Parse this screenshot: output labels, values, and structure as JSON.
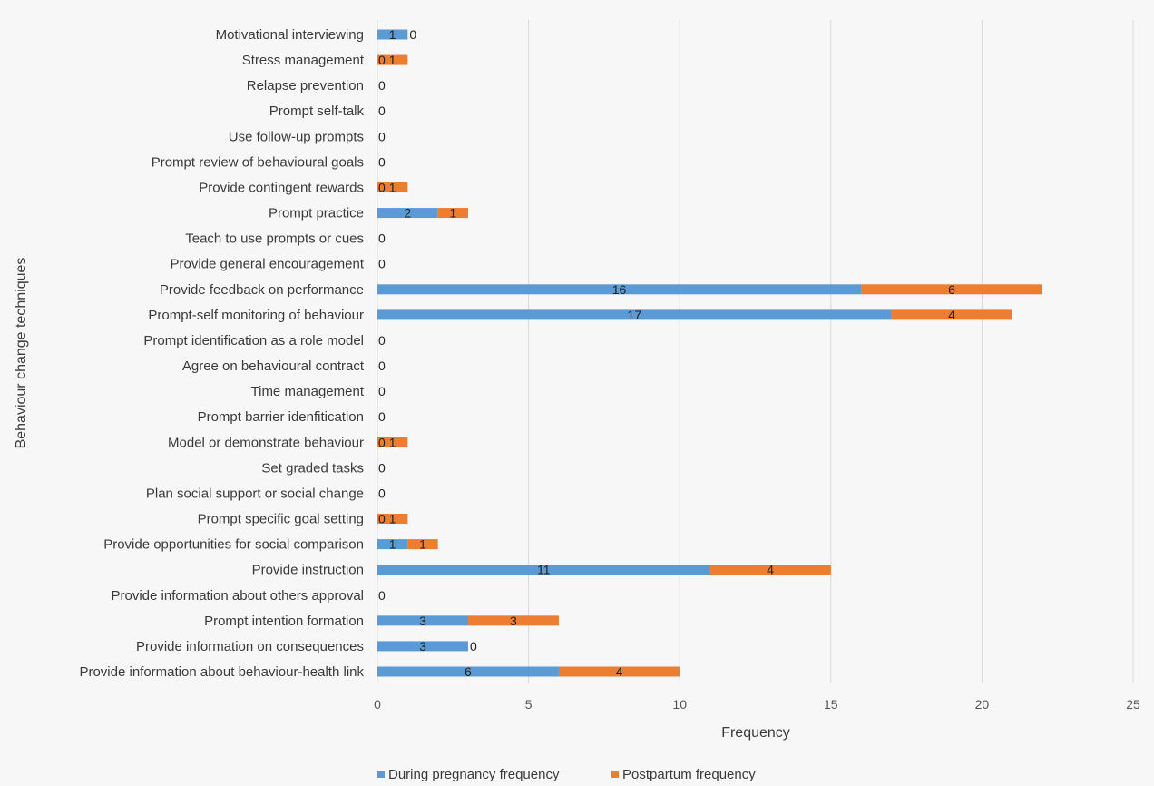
{
  "chart_data": {
    "type": "bar",
    "orientation": "horizontal",
    "stacked": true,
    "title": "",
    "xlabel": "Frequency",
    "ylabel": "Behaviour change techniques",
    "xlim": [
      0,
      25
    ],
    "x_ticks": [
      0,
      5,
      10,
      15,
      20,
      25
    ],
    "grid": "vertical",
    "legend": "bottom",
    "categories": [
      "Motivational interviewing",
      "Stress management",
      "Relapse prevention",
      "Prompt self-talk",
      "Use follow-up prompts",
      "Prompt review of behavioural goals",
      "Provide contingent rewards",
      "Prompt practice",
      "Teach to use prompts or cues",
      "Provide general encouragement",
      "Provide feedback on performance",
      "Prompt-self monitoring of behaviour",
      "Prompt identification as a role model",
      "Agree on behavioural contract",
      "Time management",
      "Prompt barrier idenfitication",
      "Model or demonstrate behaviour",
      "Set graded tasks",
      "Plan social support or social change",
      "Prompt specific goal setting",
      "Provide opportunities for social comparison",
      "Provide instruction",
      "Provide information about others approval",
      "Prompt intention formation",
      "Provide information on consequences",
      "Provide information about behaviour-health link"
    ],
    "series": [
      {
        "name": "During pregnancy frequency",
        "color": "#5b9bd5",
        "values": [
          1,
          0,
          0,
          0,
          0,
          0,
          0,
          2,
          0,
          0,
          16,
          17,
          0,
          0,
          0,
          0,
          0,
          0,
          0,
          0,
          1,
          11,
          0,
          3,
          3,
          6
        ],
        "labels": [
          "1",
          "0",
          "0",
          "0",
          "0",
          "0",
          "0",
          "2",
          "0",
          "0",
          "16",
          "17",
          "0",
          "0",
          "0",
          "0",
          "0",
          "0",
          "0",
          "0",
          "1",
          "11",
          "0",
          "3",
          "3",
          "6"
        ]
      },
      {
        "name": "Postpartum frequency",
        "color": "#ed7d31",
        "values": [
          0,
          1,
          0,
          0,
          0,
          0,
          1,
          1,
          0,
          0,
          6,
          4,
          0,
          0,
          0,
          0,
          1,
          0,
          0,
          1,
          1,
          4,
          0,
          3,
          0,
          4
        ],
        "labels": [
          "0",
          "1",
          "",
          "",
          "",
          "",
          "1",
          "1",
          "",
          "",
          "6",
          "4",
          "",
          "",
          "",
          "",
          "1",
          "",
          "",
          "1",
          "1",
          "4",
          "",
          "3",
          "0",
          "4"
        ]
      }
    ]
  }
}
